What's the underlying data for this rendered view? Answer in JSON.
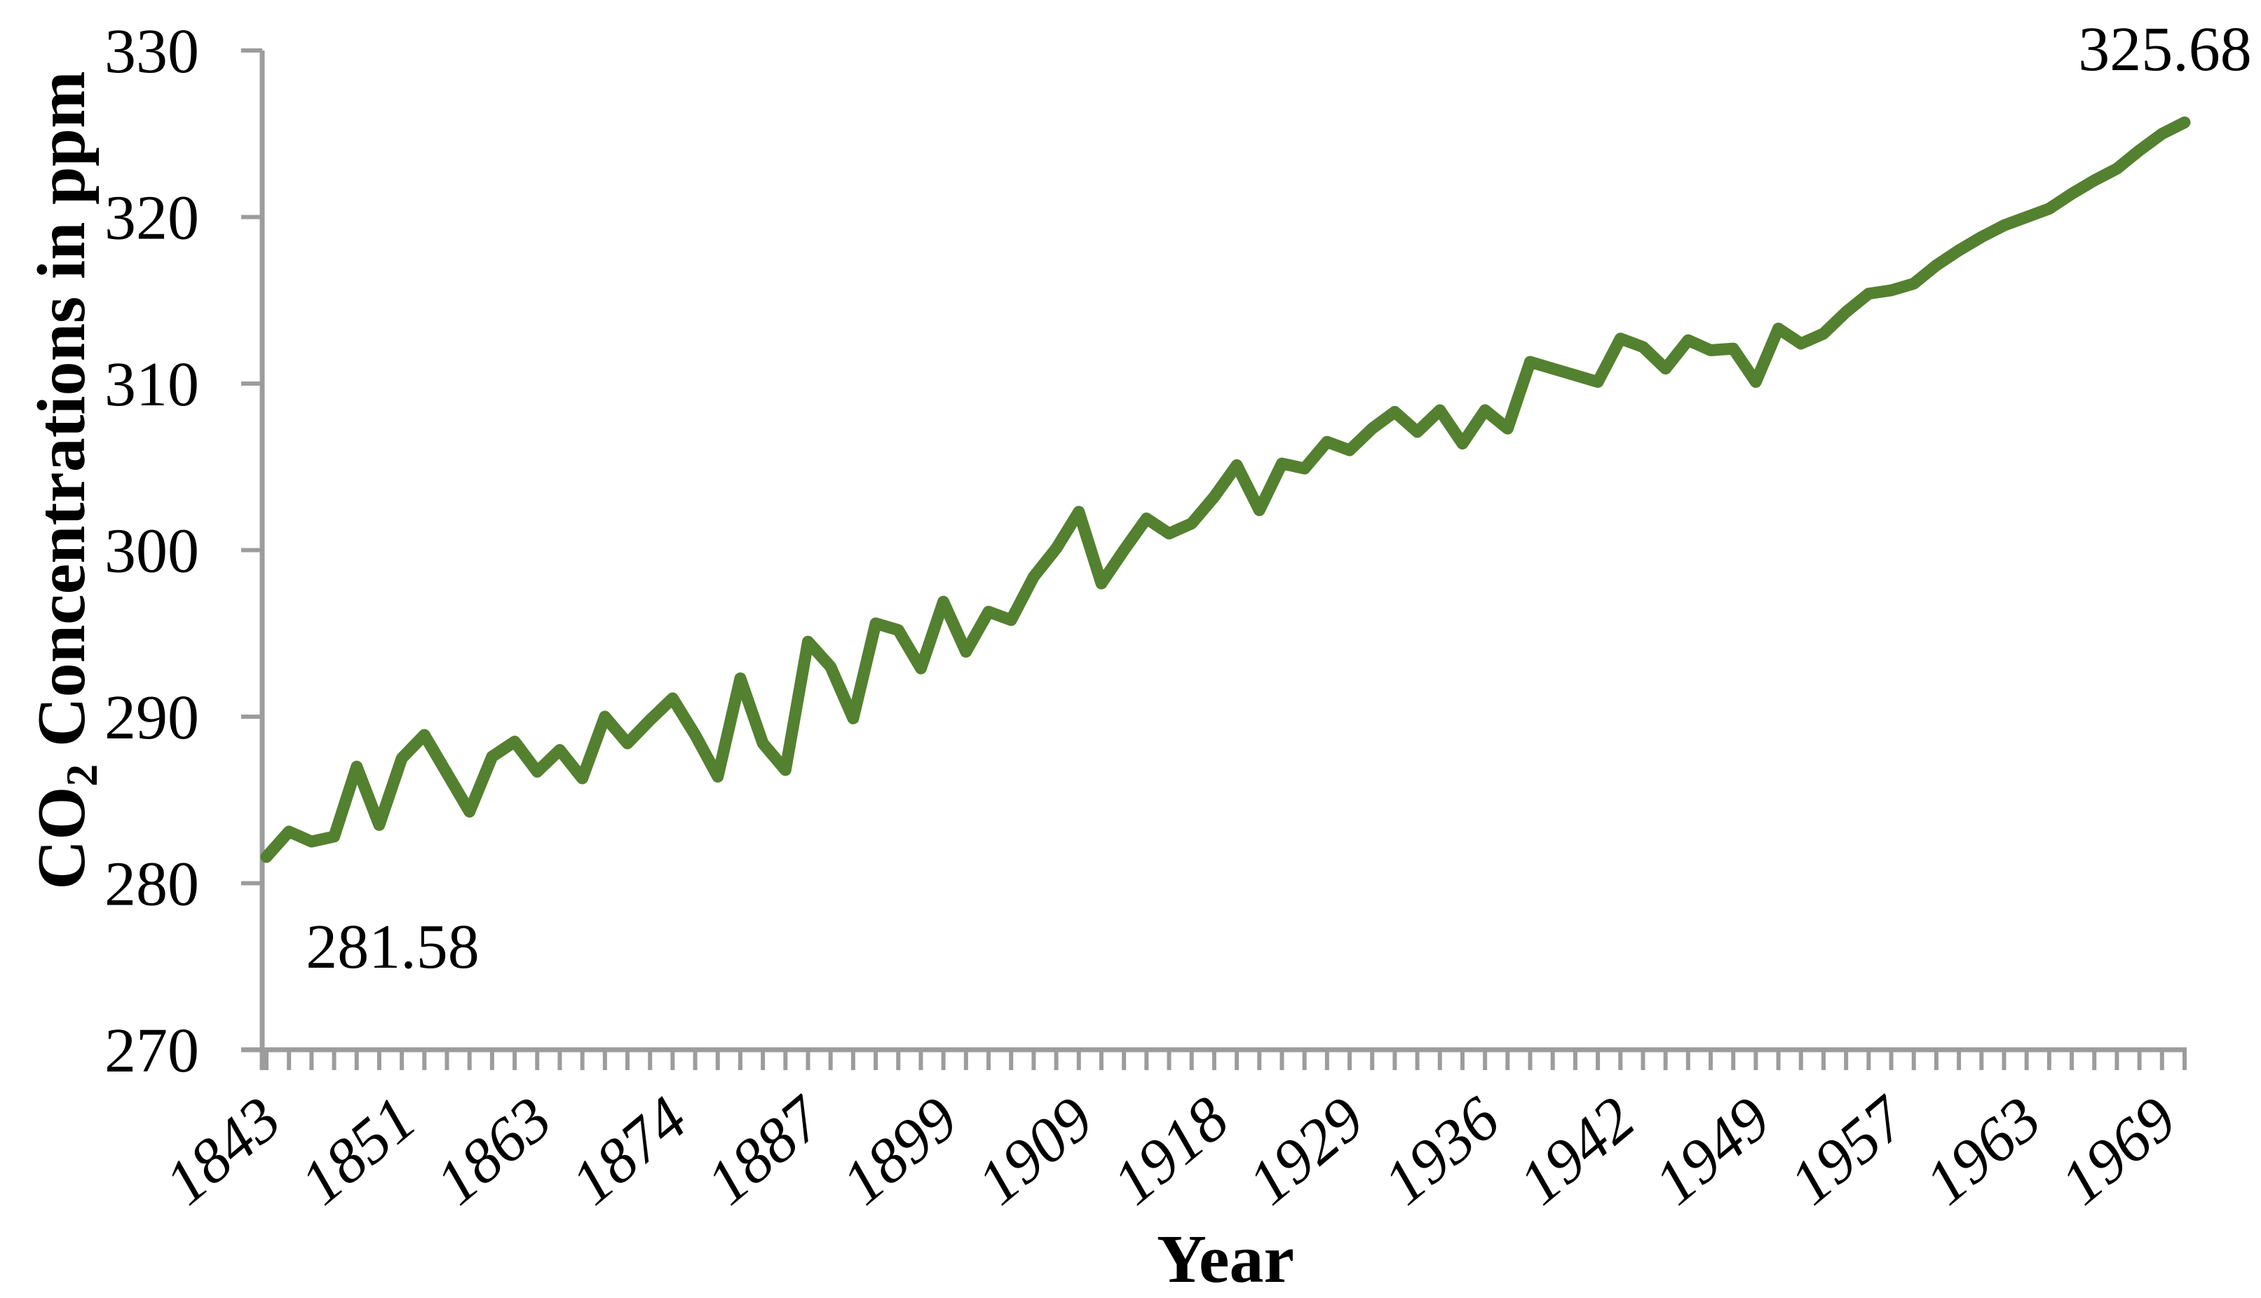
{
  "figure": {
    "background_color": "#ffffff",
    "line_color": "#538130",
    "axis_color": "#9c9c9c",
    "text_color": "#000000"
  },
  "chart_data": {
    "type": "line",
    "title": "",
    "xlabel": "Year",
    "ylabel": "CO2 Concentrations in ppm",
    "ylabel_parts": {
      "prefix": "CO",
      "sub": "2",
      "rest": " Concentrations in ppm"
    },
    "ylim": [
      270,
      330
    ],
    "yticks": [
      270,
      280,
      290,
      300,
      310,
      320,
      330
    ],
    "grid": false,
    "legend_position": "none",
    "x_label_interval": 6,
    "x_labels_shown": [
      "1843",
      "1851",
      "1863",
      "1874",
      "1887",
      "1899",
      "1909",
      "1918",
      "1929",
      "1936",
      "1942",
      "1949",
      "1957",
      "1963",
      "1969"
    ],
    "series": [
      {
        "name": "CO2 Concentrations in ppm",
        "x": [
          1843,
          1844,
          1846,
          1847,
          1849,
          1850,
          1851,
          1853,
          1855,
          1857,
          1859,
          1861,
          1863,
          1865,
          1867,
          1869,
          1870,
          1872,
          1874,
          1876,
          1878,
          1880,
          1883,
          1885,
          1887,
          1889,
          1891,
          1893,
          1895,
          1897,
          1899,
          1901,
          1903,
          1904,
          1906,
          1908,
          1909,
          1911,
          1912,
          1914,
          1915,
          1917,
          1918,
          1920,
          1922,
          1924,
          1925,
          1927,
          1929,
          1930,
          1931,
          1932,
          1933,
          1934,
          1936,
          1937,
          1938,
          1939,
          1940,
          1941,
          1942,
          1943,
          1944,
          1945,
          1946,
          1948,
          1949,
          1950,
          1951,
          1953,
          1954,
          1956,
          1957,
          1958,
          1959,
          1960,
          1961,
          1962,
          1963,
          1964,
          1965,
          1966,
          1967,
          1968,
          1969,
          1970
        ],
        "values": [
          281.58,
          283.1,
          282.5,
          282.8,
          287.0,
          283.5,
          287.5,
          288.9,
          286.6,
          284.3,
          287.6,
          288.5,
          286.7,
          288.0,
          286.3,
          290.0,
          288.4,
          289.8,
          291.1,
          288.9,
          286.4,
          292.3,
          288.4,
          286.8,
          294.5,
          293.0,
          289.9,
          295.6,
          295.2,
          292.9,
          296.9,
          293.9,
          296.3,
          295.8,
          298.4,
          300.1,
          302.3,
          298.0,
          300.0,
          301.9,
          301.0,
          301.6,
          303.2,
          305.1,
          302.4,
          305.2,
          304.9,
          306.5,
          306.0,
          307.3,
          308.3,
          307.1,
          308.4,
          306.4,
          308.4,
          307.3,
          311.3,
          310.9,
          310.5,
          310.1,
          312.7,
          312.2,
          310.9,
          312.6,
          312.0,
          312.1,
          310.1,
          313.3,
          312.4,
          313.0,
          314.3,
          315.4,
          315.6,
          316.0,
          317.1,
          318.0,
          318.8,
          319.5,
          320.0,
          320.5,
          321.4,
          322.2,
          322.9,
          324.0,
          325.0,
          325.68
        ]
      }
    ],
    "annotations": [
      {
        "x": 1843,
        "value": 281.58,
        "text": "281.58"
      },
      {
        "x": 1970,
        "value": 325.68,
        "text": "325.68"
      }
    ]
  }
}
